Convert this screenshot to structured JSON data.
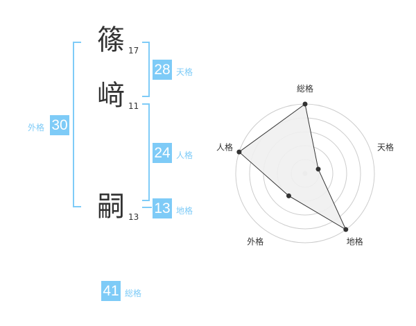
{
  "name": [
    {
      "char": "篠",
      "strokes": "17"
    },
    {
      "char": "﨑",
      "strokes": "11"
    },
    {
      "char": "嗣",
      "strokes": "13"
    }
  ],
  "kaku": {
    "tenkaku": {
      "label": "天格",
      "value": "28"
    },
    "jinkaku": {
      "label": "人格",
      "value": "24"
    },
    "chikaku": {
      "label": "地格",
      "value": "13"
    },
    "gaikaku": {
      "label": "外格",
      "value": "30"
    },
    "soukaku": {
      "label": "総格",
      "value": "41"
    }
  },
  "chart_data": {
    "type": "radar",
    "axes": [
      "総格",
      "天格",
      "地格",
      "外格",
      "人格"
    ],
    "values": [
      5,
      1,
      5,
      2,
      5
    ],
    "range": [
      0,
      5
    ],
    "rings": 5,
    "colors": {
      "fill": "#f0f0f0",
      "line": "#333333",
      "ring": "#cccccc",
      "accent": "#7ecbf7"
    }
  }
}
